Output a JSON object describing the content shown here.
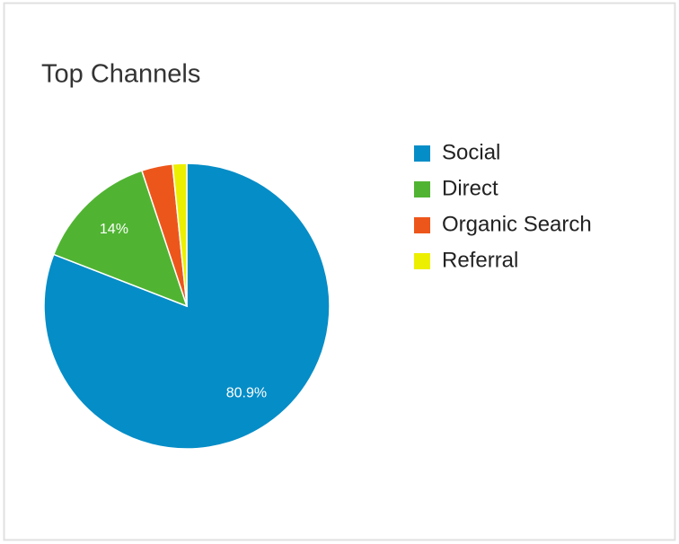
{
  "chart_data": {
    "type": "pie",
    "title": "Top Channels",
    "categories": [
      "Social",
      "Direct",
      "Organic Search",
      "Referral"
    ],
    "values": [
      80.9,
      14,
      3.5,
      1.6
    ],
    "value_labels": [
      "80.9%",
      "14%",
      null,
      null
    ],
    "colors": [
      "#058dc7",
      "#50b432",
      "#ed561b",
      "#edef00"
    ],
    "legend": "right"
  }
}
